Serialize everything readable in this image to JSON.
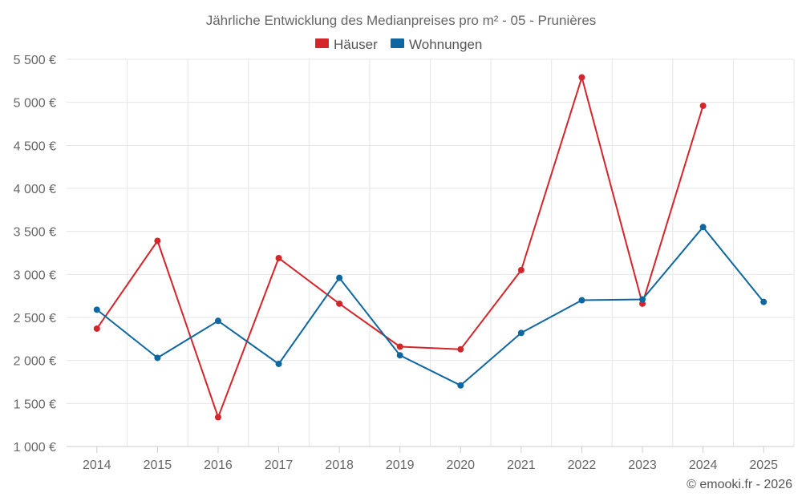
{
  "chart_data": {
    "type": "line",
    "title": "Jährliche Entwicklung des Medianpreises pro m² - 05 - Prunières",
    "xlabel": "",
    "ylabel": "",
    "categories": [
      "2014",
      "2015",
      "2016",
      "2017",
      "2018",
      "2019",
      "2020",
      "2021",
      "2022",
      "2023",
      "2024",
      "2025"
    ],
    "ylim": [
      1000,
      5500
    ],
    "y_ticks": [
      1000,
      1500,
      2000,
      2500,
      3000,
      3500,
      4000,
      4500,
      5000,
      5500
    ],
    "y_tick_labels": [
      "1 000 €",
      "1 500 €",
      "2 000 €",
      "2 500 €",
      "3 000 €",
      "3 500 €",
      "4 000 €",
      "4 500 €",
      "5 000 €",
      "5 500 €"
    ],
    "grid": true,
    "legend_position": "top-center",
    "series": [
      {
        "name": "Häuser",
        "color": "#d3252a",
        "values": [
          2370,
          3390,
          1340,
          3190,
          2660,
          2160,
          2130,
          3050,
          5290,
          2660,
          4960,
          null
        ]
      },
      {
        "name": "Wohnungen",
        "color": "#0f67a1",
        "values": [
          2590,
          2030,
          2460,
          1960,
          2960,
          2060,
          1710,
          2320,
          2700,
          2710,
          3550,
          2680
        ]
      }
    ],
    "credit": "© emooki.fr - 2026"
  }
}
